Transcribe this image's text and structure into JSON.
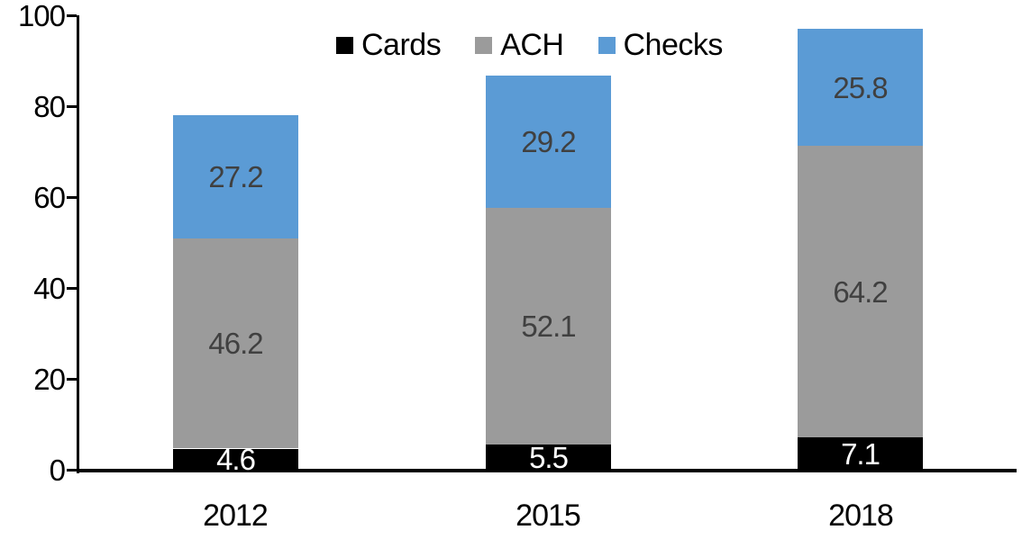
{
  "chart_data": {
    "type": "bar",
    "stacked": true,
    "title": "",
    "xlabel": "",
    "ylabel": "",
    "categories": [
      "2012",
      "2015",
      "2018"
    ],
    "series": [
      {
        "name": "Cards",
        "color": "#000000",
        "label_color": "#ffffff",
        "values": [
          4.6,
          5.5,
          7.1
        ]
      },
      {
        "name": "ACH",
        "color": "#9b9b9b",
        "label_color": "#404040",
        "values": [
          46.2,
          52.1,
          64.2
        ]
      },
      {
        "name": "Checks",
        "color": "#5b9bd5",
        "label_color": "#404040",
        "values": [
          27.2,
          29.2,
          25.8
        ]
      }
    ],
    "totals": [
      78.0,
      86.8,
      97.1
    ],
    "ylim": [
      0,
      100
    ],
    "y_ticks": [
      0,
      20,
      40,
      60,
      80,
      100
    ],
    "grid": false,
    "legend_position": "top-center",
    "data_labels": true,
    "axis_color": "#000000",
    "background_color": "#ffffff"
  }
}
